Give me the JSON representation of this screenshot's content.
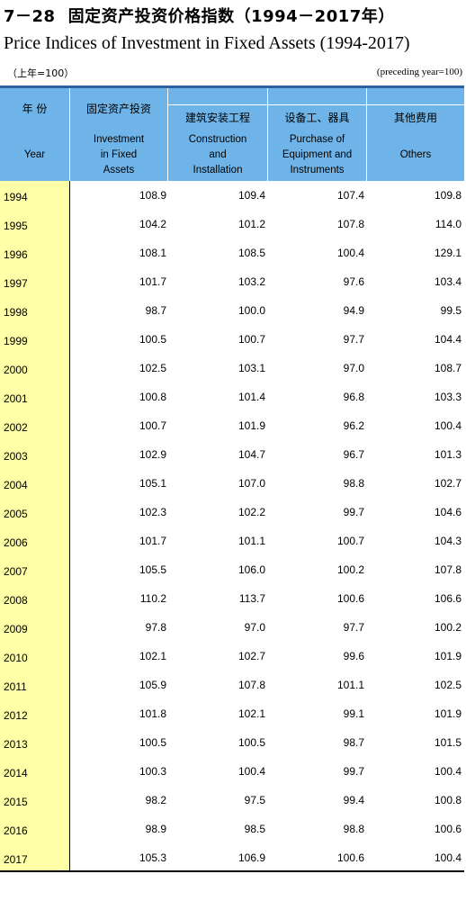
{
  "title": {
    "number": "7－28",
    "zh": "固定资产投资价格指数（1994－2017年）",
    "en": "Price Indices of Investment in Fixed Assets (1994-2017)"
  },
  "unit": {
    "zh": "（上年=100）",
    "en": "(preceding year=100)"
  },
  "headers": {
    "year": {
      "zh": "年  份",
      "en": "Year"
    },
    "investment": {
      "zh": "固定资产投资",
      "en": [
        "Investment",
        "in Fixed",
        "Assets"
      ]
    },
    "construction": {
      "zh": "建筑安装工程",
      "en": [
        "Construction",
        "and",
        "Installation"
      ]
    },
    "equipment": {
      "zh": "设备工、器具",
      "en": [
        "Purchase of",
        "Equipment and",
        "Instruments"
      ]
    },
    "others": {
      "zh": "其他费用",
      "en": [
        "Others"
      ]
    }
  },
  "colors": {
    "header_bg": "#6fb4e8",
    "year_bg": "#ffffa8",
    "top_rule": "#2a63a0"
  },
  "rows": [
    {
      "year": "1994",
      "investment": "108.9",
      "construction": "109.4",
      "equipment": "107.4",
      "others": "109.8"
    },
    {
      "year": "1995",
      "investment": "104.2",
      "construction": "101.2",
      "equipment": "107.8",
      "others": "114.0"
    },
    {
      "year": "1996",
      "investment": "108.1",
      "construction": "108.5",
      "equipment": "100.4",
      "others": "129.1"
    },
    {
      "year": "1997",
      "investment": "101.7",
      "construction": "103.2",
      "equipment": "97.6",
      "others": "103.4"
    },
    {
      "year": "1998",
      "investment": "98.7",
      "construction": "100.0",
      "equipment": "94.9",
      "others": "99.5"
    },
    {
      "year": "1999",
      "investment": "100.5",
      "construction": "100.7",
      "equipment": "97.7",
      "others": "104.4"
    },
    {
      "year": "2000",
      "investment": "102.5",
      "construction": "103.1",
      "equipment": "97.0",
      "others": "108.7"
    },
    {
      "year": "2001",
      "investment": "100.8",
      "construction": "101.4",
      "equipment": "96.8",
      "others": "103.3"
    },
    {
      "year": "2002",
      "investment": "100.7",
      "construction": "101.9",
      "equipment": "96.2",
      "others": "100.4"
    },
    {
      "year": "2003",
      "investment": "102.9",
      "construction": "104.7",
      "equipment": "96.7",
      "others": "101.3"
    },
    {
      "year": "2004",
      "investment": "105.1",
      "construction": "107.0",
      "equipment": "98.8",
      "others": "102.7"
    },
    {
      "year": "2005",
      "investment": "102.3",
      "construction": "102.2",
      "equipment": "99.7",
      "others": "104.6"
    },
    {
      "year": "2006",
      "investment": "101.7",
      "construction": "101.1",
      "equipment": "100.7",
      "others": "104.3"
    },
    {
      "year": "2007",
      "investment": "105.5",
      "construction": "106.0",
      "equipment": "100.2",
      "others": "107.8"
    },
    {
      "year": "2008",
      "investment": "110.2",
      "construction": "113.7",
      "equipment": "100.6",
      "others": "106.6"
    },
    {
      "year": "2009",
      "investment": "97.8",
      "construction": "97.0",
      "equipment": "97.7",
      "others": "100.2"
    },
    {
      "year": "2010",
      "investment": "102.1",
      "construction": "102.7",
      "equipment": "99.6",
      "others": "101.9"
    },
    {
      "year": "2011",
      "investment": "105.9",
      "construction": "107.8",
      "equipment": "101.1",
      "others": "102.5"
    },
    {
      "year": "2012",
      "investment": "101.8",
      "construction": "102.1",
      "equipment": "99.1",
      "others": "101.9"
    },
    {
      "year": "2013",
      "investment": "100.5",
      "construction": "100.5",
      "equipment": "98.7",
      "others": "101.5"
    },
    {
      "year": "2014",
      "investment": "100.3",
      "construction": "100.4",
      "equipment": "99.7",
      "others": "100.4"
    },
    {
      "year": "2015",
      "investment": "98.2",
      "construction": "97.5",
      "equipment": "99.4",
      "others": "100.8"
    },
    {
      "year": "2016",
      "investment": "98.9",
      "construction": "98.5",
      "equipment": "98.8",
      "others": "100.6"
    },
    {
      "year": "2017",
      "investment": "105.3",
      "construction": "106.9",
      "equipment": "100.6",
      "others": "100.4"
    }
  ]
}
